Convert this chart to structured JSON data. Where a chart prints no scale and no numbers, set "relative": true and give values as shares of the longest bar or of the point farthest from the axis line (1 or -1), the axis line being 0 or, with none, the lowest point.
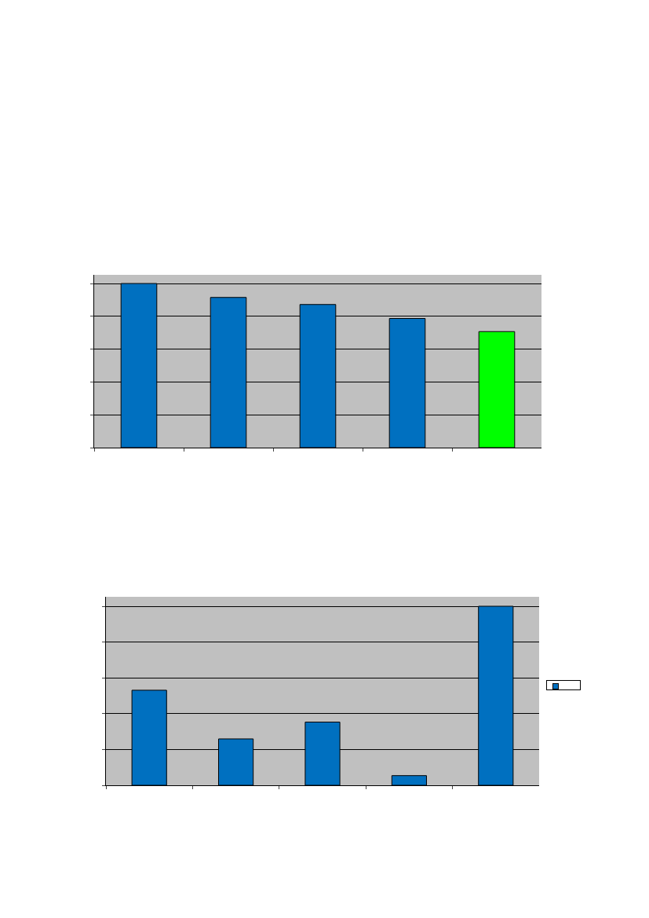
{
  "chart_data": [
    {
      "type": "bar",
      "relative": true,
      "categories": [
        null,
        null,
        null,
        null,
        null
      ],
      "values": [
        1,
        0.915,
        0.872,
        0.787,
        0.707
      ],
      "colors": [
        "#0070c0",
        "#0070c0",
        "#0070c0",
        "#0070c0",
        "#00ff00"
      ],
      "grid": "y",
      "legend": false
    },
    {
      "type": "bar",
      "relative": true,
      "categories": [
        null,
        null,
        null,
        null,
        null
      ],
      "series": [
        {
          "color": "#0070c0",
          "values": [
            0.531,
            0.259,
            0.353,
            0.054,
            1
          ]
        }
      ],
      "grid": "y"
    }
  ]
}
